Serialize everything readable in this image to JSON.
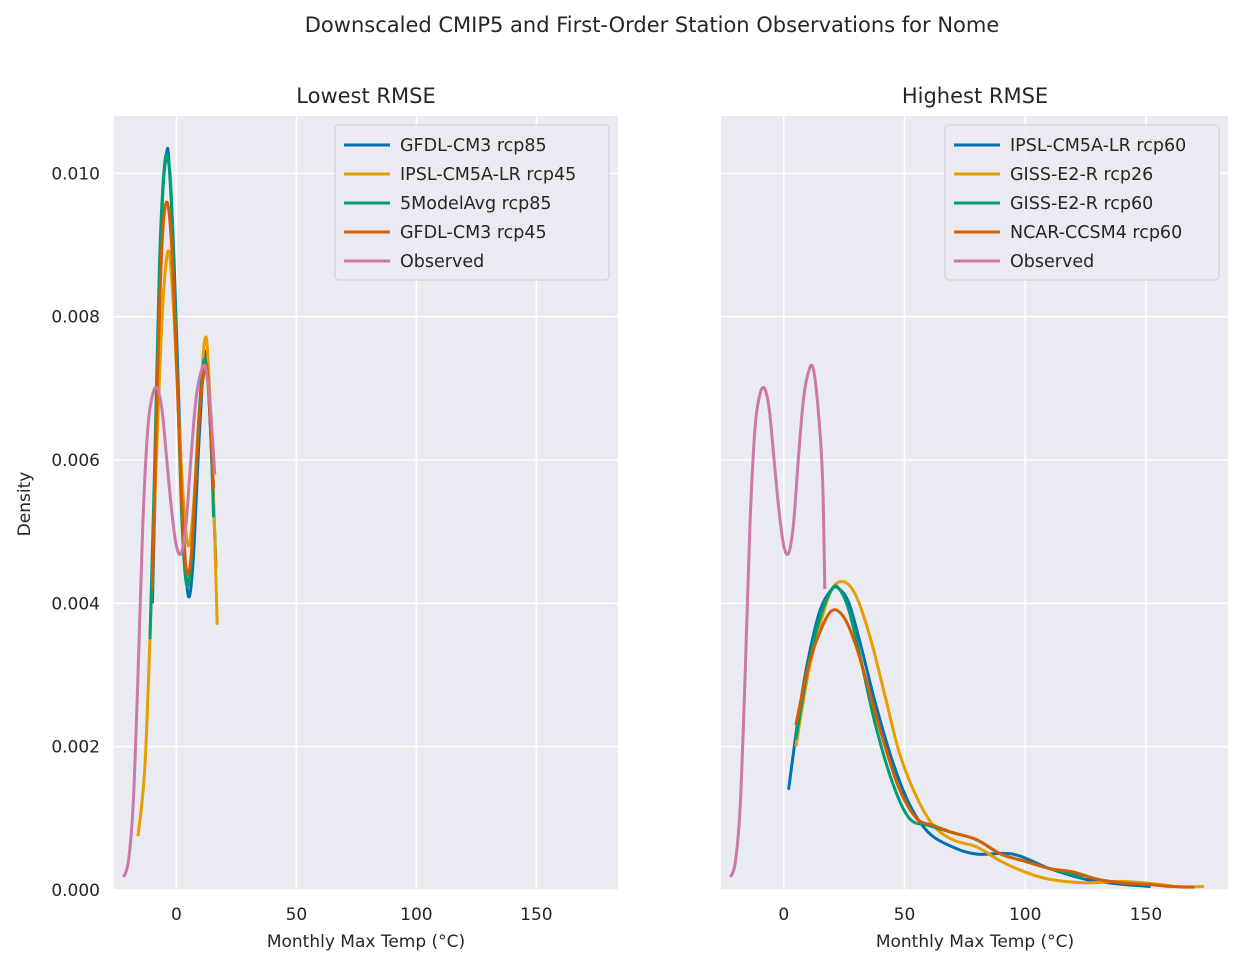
{
  "figure": {
    "suptitle": "Downscaled CMIP5 and First-Order Station Observations for Nome"
  },
  "chart_data": [
    {
      "type": "line",
      "title": "Lowest RMSE",
      "xlabel": "Monthly Max Temp (°C)",
      "ylabel": "Density",
      "xlim": [
        -26,
        184
      ],
      "ylim": [
        0,
        0.0108
      ],
      "xticks": [
        0,
        50,
        100,
        150
      ],
      "yticks": [
        0.0,
        0.002,
        0.004,
        0.006,
        0.008,
        0.01
      ],
      "ytick_labels": [
        "0.000",
        "0.002",
        "0.004",
        "0.006",
        "0.008",
        "0.010"
      ],
      "grid": true,
      "legend_position": "top-right",
      "series": [
        {
          "name": "GFDL-CM3 rcp85",
          "color": "#0072b2",
          "x": [
            -10,
            -8,
            -6,
            -4,
            -3,
            -1,
            1,
            3,
            5,
            7,
            9,
            11,
            12,
            13,
            15,
            16.5
          ],
          "y": [
            0.004,
            0.0068,
            0.0095,
            0.0103,
            0.0101,
            0.0088,
            0.0068,
            0.005,
            0.0041,
            0.0046,
            0.006,
            0.0072,
            0.0075,
            0.0073,
            0.0058,
            0.0045
          ]
        },
        {
          "name": "IPSL-CM5A-LR rcp45",
          "color": "#e69f00",
          "x": [
            -16,
            -13,
            -10,
            -7,
            -5,
            -3,
            -1,
            1,
            3,
            5,
            7,
            9,
            11,
            12,
            13,
            15,
            17
          ],
          "y": [
            0.00075,
            0.0018,
            0.0045,
            0.0072,
            0.0085,
            0.0089,
            0.008,
            0.0066,
            0.0054,
            0.0048,
            0.0053,
            0.0064,
            0.0074,
            0.0077,
            0.0075,
            0.006,
            0.0037
          ]
        },
        {
          "name": "5ModelAvg rcp85",
          "color": "#009e73",
          "x": [
            -11,
            -9,
            -7,
            -5,
            -3.5,
            -2,
            0,
            2,
            4,
            6,
            8,
            10,
            12,
            14,
            15.5
          ],
          "y": [
            0.0035,
            0.006,
            0.0088,
            0.0101,
            0.0102,
            0.0096,
            0.0076,
            0.0054,
            0.0043,
            0.0045,
            0.0057,
            0.0069,
            0.0074,
            0.0066,
            0.0052
          ]
        },
        {
          "name": "GFDL-CM3 rcp45",
          "color": "#d55e00",
          "x": [
            -10,
            -8,
            -6,
            -4,
            -2,
            0,
            2,
            4,
            6,
            8,
            10,
            12,
            13,
            14,
            15.5
          ],
          "y": [
            0.0042,
            0.007,
            0.009,
            0.0096,
            0.009,
            0.0074,
            0.0056,
            0.0045,
            0.0046,
            0.0057,
            0.0068,
            0.0073,
            0.0072,
            0.0066,
            0.0056
          ]
        },
        {
          "name": "Observed",
          "color": "#cc79a7",
          "x": [
            -22,
            -20,
            -18,
            -16,
            -14,
            -12,
            -10,
            -8,
            -6,
            -4,
            -2,
            0,
            2,
            4,
            6,
            8,
            10,
            12,
            14,
            16
          ],
          "y": [
            0.00018,
            0.0004,
            0.0012,
            0.003,
            0.0051,
            0.0064,
            0.0069,
            0.007,
            0.0067,
            0.006,
            0.0053,
            0.0048,
            0.0047,
            0.0051,
            0.006,
            0.0068,
            0.0072,
            0.0073,
            0.0068,
            0.0058
          ]
        }
      ]
    },
    {
      "type": "line",
      "title": "Highest RMSE",
      "xlabel": "Monthly Max Temp (°C)",
      "ylabel": "",
      "xlim": [
        -26,
        184
      ],
      "ylim": [
        0,
        0.0108
      ],
      "xticks": [
        0,
        50,
        100,
        150
      ],
      "grid": true,
      "legend_position": "top-right",
      "series": [
        {
          "name": "IPSL-CM5A-LR rcp60",
          "color": "#0072b2",
          "x": [
            2,
            6,
            10,
            15,
            20,
            23,
            27,
            32,
            38,
            45,
            52,
            60,
            70,
            80,
            95,
            110,
            125,
            140,
            152
          ],
          "y": [
            0.0014,
            0.0024,
            0.0032,
            0.0039,
            0.0042,
            0.0042,
            0.004,
            0.0034,
            0.0026,
            0.0018,
            0.0012,
            0.0008,
            0.0006,
            0.0005,
            0.0005,
            0.0003,
            0.00015,
            8e-05,
            5e-05
          ]
        },
        {
          "name": "GISS-E2-R rcp26",
          "color": "#e69f00",
          "x": [
            5,
            10,
            15,
            20,
            25,
            30,
            36,
            42,
            48,
            55,
            62,
            70,
            80,
            90,
            100,
            110,
            125,
            140,
            155,
            165,
            174
          ],
          "y": [
            0.002,
            0.003,
            0.0037,
            0.0042,
            0.0043,
            0.0041,
            0.0035,
            0.0027,
            0.0019,
            0.0013,
            0.0009,
            0.0007,
            0.0006,
            0.0004,
            0.00025,
            0.00015,
            0.0001,
            0.00012,
            8e-05,
            4e-05,
            5e-05
          ]
        },
        {
          "name": "GISS-E2-R rcp60",
          "color": "#009e73",
          "x": [
            5,
            10,
            15,
            20,
            23,
            27,
            32,
            38,
            45,
            52,
            60,
            70,
            80,
            90,
            100,
            110,
            124
          ],
          "y": [
            0.0021,
            0.0031,
            0.0038,
            0.0042,
            0.0042,
            0.0039,
            0.0032,
            0.0023,
            0.0015,
            0.001,
            0.0009,
            0.0008,
            0.0007,
            0.0005,
            0.0004,
            0.0003,
            0.00018
          ]
        },
        {
          "name": "NCAR-CCSM4 rcp60",
          "color": "#d55e00",
          "x": [
            5,
            10,
            15,
            20,
            25,
            30,
            36,
            42,
            48,
            55,
            62,
            70,
            80,
            90,
            100,
            110,
            120,
            130,
            140,
            150,
            160,
            170
          ],
          "y": [
            0.0023,
            0.0031,
            0.0036,
            0.0039,
            0.0038,
            0.0034,
            0.0027,
            0.002,
            0.0014,
            0.001,
            0.0009,
            0.0008,
            0.0007,
            0.0005,
            0.0004,
            0.0003,
            0.00025,
            0.00015,
            0.0001,
            8e-05,
            5e-05,
            4e-05
          ]
        },
        {
          "name": "Observed",
          "color": "#cc79a7",
          "x": [
            -22,
            -20,
            -18,
            -16,
            -14,
            -12,
            -10,
            -8,
            -6,
            -4,
            -2,
            0,
            2,
            4,
            6,
            8,
            10,
            12,
            14,
            16,
            17
          ],
          "y": [
            0.00018,
            0.0004,
            0.0012,
            0.003,
            0.0051,
            0.0064,
            0.0069,
            0.007,
            0.0067,
            0.006,
            0.0053,
            0.0048,
            0.0047,
            0.0051,
            0.006,
            0.0068,
            0.0072,
            0.0073,
            0.0068,
            0.0058,
            0.0042
          ]
        }
      ]
    }
  ]
}
